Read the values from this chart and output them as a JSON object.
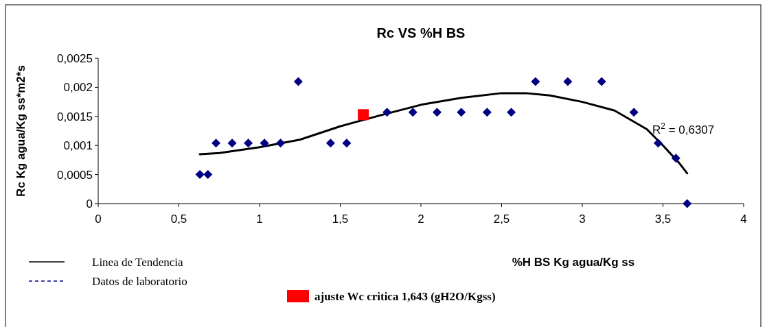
{
  "chart_data": {
    "type": "scatter",
    "title": "Rc VS %H BS",
    "xlabel": "%H BS Kg agua/Kg ss",
    "ylabel": "Rc Kg agua/Kg ss*m2*s",
    "xlim": [
      0,
      4
    ],
    "xticks": [
      0,
      {
        "value": 0.5,
        "label": "0,5"
      },
      1,
      {
        "value": 1.5,
        "label": "1,5"
      },
      2,
      {
        "value": 2.5,
        "label": "2,5"
      },
      3,
      {
        "value": 3.5,
        "label": "3,5"
      },
      4
    ],
    "ylim": [
      0,
      0.0025
    ],
    "yticks": [
      0,
      {
        "value": 0.0005,
        "label": "0,0005"
      },
      {
        "value": 0.001,
        "label": "0,001"
      },
      {
        "value": 0.0015,
        "label": "0,0015"
      },
      {
        "value": 0.002,
        "label": "0,002"
      },
      {
        "value": 0.0025,
        "label": "0,0025"
      }
    ],
    "grid": false,
    "legend": "bottom left",
    "annotations": [
      "R$^{2}$ = 0,6307"
    ],
    "series": [
      {
        "name": "Linea de Tendencia",
        "type": "line",
        "color": "#000000",
        "line_style": "solid",
        "marker": "none",
        "x": [
          0.63,
          0.75,
          1.0,
          1.25,
          1.5,
          1.75,
          2.0,
          2.25,
          2.5,
          2.65,
          2.8,
          3.0,
          3.2,
          3.4,
          3.5,
          3.6,
          3.65
        ],
        "values": [
          0.00085,
          0.00087,
          0.00097,
          0.0011,
          0.00133,
          0.00152,
          0.0017,
          0.00182,
          0.0019,
          0.0019,
          0.00186,
          0.00175,
          0.0016,
          0.00128,
          0.001,
          0.0007,
          0.00052
        ]
      },
      {
        "name": "Datos de laboratorio",
        "color": "#000080",
        "line_style": "dashed",
        "marker": "diamond",
        "x": [
          0.63,
          0.68,
          0.73,
          0.83,
          0.93,
          1.03,
          1.13,
          1.24,
          1.44,
          1.54,
          1.79,
          1.95,
          2.1,
          2.25,
          2.41,
          2.56,
          2.71,
          2.91,
          3.12,
          3.32,
          3.47,
          3.58,
          3.65
        ],
        "values": [
          0.0005,
          0.0005,
          0.00104,
          0.00104,
          0.00104,
          0.00104,
          0.00104,
          0.0021,
          0.00104,
          0.00104,
          0.00157,
          0.00157,
          0.00157,
          0.00157,
          0.00157,
          0.00157,
          0.0021,
          0.0021,
          0.0021,
          0.00157,
          0.00104,
          0.00078,
          0
        ]
      },
      {
        "name": "ajuste Wc critica 1,643 (gH2O/Kgss)",
        "color": "#ff0000",
        "marker": "square",
        "x": [
          1.643
        ],
        "values": [
          0.00153
        ]
      }
    ]
  }
}
